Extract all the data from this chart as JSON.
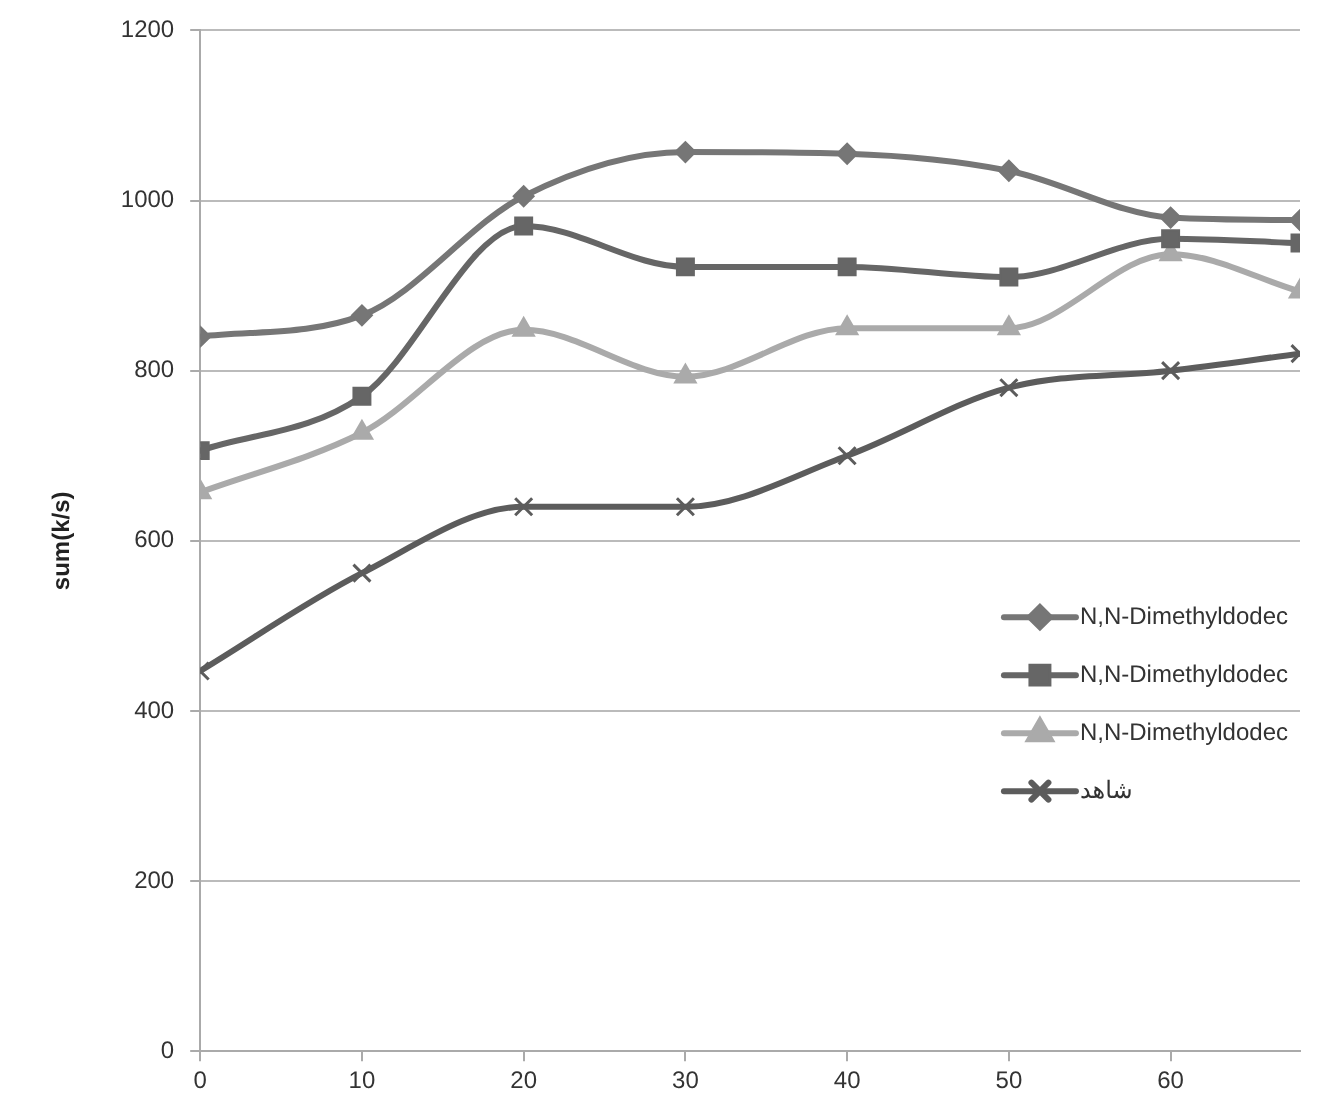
{
  "chart_data": {
    "type": "line",
    "ylabel": "sum(k/s)",
    "xlim": [
      0,
      68
    ],
    "xticks": [
      0,
      10,
      20,
      30,
      40,
      50,
      60
    ],
    "ylim": [
      0,
      1200
    ],
    "yticks": [
      0,
      200,
      400,
      600,
      800,
      1000,
      1200
    ],
    "grid": "y",
    "legend": "right",
    "x": [
      0,
      10,
      20,
      30,
      40,
      50,
      60,
      68
    ],
    "series": [
      {
        "name": "N,N-Dimethyldodec",
        "color": "#767676",
        "marker": "diamond",
        "values": [
          840,
          865,
          1005,
          1057,
          1055,
          1035,
          980,
          977
        ]
      },
      {
        "name": "N,N-Dimethyldodec",
        "color": "#666666",
        "marker": "square",
        "values": [
          706,
          770,
          970,
          922,
          922,
          910,
          955,
          950
        ]
      },
      {
        "name": "N,N-Dimethyldodec",
        "color": "#aaaaaa",
        "marker": "triangle",
        "values": [
          657,
          727,
          848,
          793,
          850,
          850,
          937,
          893
        ]
      },
      {
        "name": "شاهد",
        "color": "#5c5c5c",
        "marker": "cross",
        "values": [
          447,
          562,
          640,
          640,
          700,
          780,
          800,
          820
        ]
      }
    ]
  }
}
